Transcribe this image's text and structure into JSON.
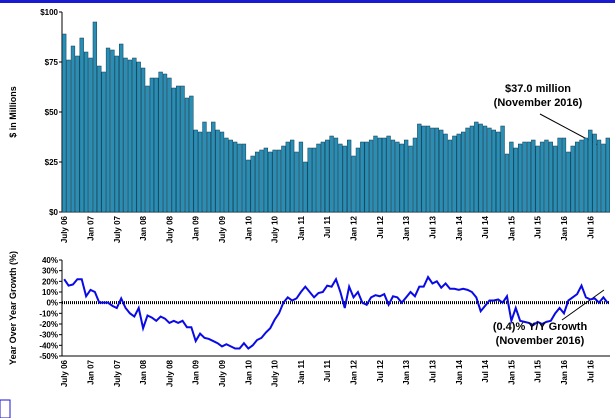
{
  "chart_data": [
    {
      "type": "bar",
      "y_label": "$ in Millions",
      "color": "#2a8db3",
      "annotation": [
        "$37.0 million",
        "(November 2016)"
      ],
      "categories": [
        "July 06",
        null,
        null,
        null,
        null,
        null,
        "Jan 07",
        null,
        null,
        null,
        null,
        null,
        "July 07",
        null,
        null,
        null,
        null,
        null,
        "Jan 08",
        null,
        null,
        null,
        null,
        null,
        "July 08",
        null,
        null,
        null,
        null,
        null,
        "Jan 09",
        null,
        null,
        null,
        null,
        null,
        "July 09",
        null,
        null,
        null,
        null,
        null,
        "Jan 10",
        null,
        null,
        null,
        null,
        null,
        "July 10",
        null,
        null,
        null,
        null,
        null,
        "Jan 11",
        null,
        null,
        null,
        null,
        null,
        "Jul 11",
        null,
        null,
        null,
        null,
        null,
        "Jan 12",
        null,
        null,
        null,
        null,
        null,
        "Jul 12",
        null,
        null,
        null,
        null,
        null,
        "Jan 13",
        null,
        null,
        null,
        null,
        null,
        "Jul 13",
        null,
        null,
        null,
        null,
        null,
        "Jan 14",
        null,
        null,
        null,
        null,
        null,
        "Jul 14",
        null,
        null,
        null,
        null,
        null,
        "Jan 15",
        null,
        null,
        null,
        null,
        null,
        "Jul 15",
        null,
        null,
        null,
        null,
        null,
        "Jan 16",
        null,
        null,
        null,
        null,
        null,
        "Jul 16",
        null,
        null,
        null,
        null
      ],
      "values": [
        89,
        76,
        83,
        78,
        87,
        80,
        77,
        95,
        73,
        70,
        82,
        81,
        78,
        84,
        77,
        76,
        77,
        75,
        72,
        63,
        67,
        67,
        70,
        69,
        67,
        62,
        63,
        63,
        57,
        58,
        41,
        40,
        45,
        40,
        45,
        41,
        40,
        37,
        36,
        35,
        34,
        34,
        26,
        28,
        30,
        31,
        32,
        30,
        31,
        31,
        33,
        35,
        36,
        30,
        35,
        25,
        32,
        32,
        34,
        35,
        36,
        38,
        37,
        34,
        33,
        36,
        28,
        32,
        35,
        35,
        36,
        38,
        37,
        37,
        38,
        36,
        35,
        34,
        36,
        33,
        37,
        44,
        43,
        43,
        42,
        42,
        41,
        39,
        36,
        38,
        39,
        40,
        42,
        43,
        45,
        44,
        43,
        42,
        41,
        40,
        43,
        29,
        35,
        32,
        34,
        35,
        35,
        36,
        33,
        35,
        36,
        35,
        33,
        37,
        37,
        30,
        33,
        35,
        36,
        37,
        41,
        39,
        36,
        34,
        37
      ],
      "ylim": [
        0,
        100
      ],
      "yticks": [
        {
          "value": 0,
          "label": "$0"
        },
        {
          "value": 25,
          "label": "$25"
        },
        {
          "value": 50,
          "label": "$50"
        },
        {
          "value": 75,
          "label": "$75"
        },
        {
          "value": 100,
          "label": "$100"
        }
      ]
    },
    {
      "type": "line",
      "y_label": "Year Over Year Growth (%)",
      "color": "#0a0ae6",
      "zero_line": true,
      "annotation": [
        "(0.4)% Y/Y Growth",
        "(November 2016)"
      ],
      "categories": [
        "July 06",
        null,
        null,
        null,
        null,
        null,
        "Jan 07",
        null,
        null,
        null,
        null,
        null,
        "July 07",
        null,
        null,
        null,
        null,
        null,
        "Jan 08",
        null,
        null,
        null,
        null,
        null,
        "July 08",
        null,
        null,
        null,
        null,
        null,
        "Jan 09",
        null,
        null,
        null,
        null,
        null,
        "July 09",
        null,
        null,
        null,
        null,
        null,
        "Jan 10",
        null,
        null,
        null,
        null,
        null,
        "July 10",
        null,
        null,
        null,
        null,
        null,
        "Jan 11",
        null,
        null,
        null,
        null,
        null,
        "Jul 11",
        null,
        null,
        null,
        null,
        null,
        "Jan 12",
        null,
        null,
        null,
        null,
        null,
        "Jul 12",
        null,
        null,
        null,
        null,
        null,
        "Jan 13",
        null,
        null,
        null,
        null,
        null,
        "Jul 13",
        null,
        null,
        null,
        null,
        null,
        "Jan 14",
        null,
        null,
        null,
        null,
        null,
        "Jul 14",
        null,
        null,
        null,
        null,
        null,
        "Jan 15",
        null,
        null,
        null,
        null,
        null,
        "Jul 15",
        null,
        null,
        null,
        null,
        null,
        "Jan 16",
        null,
        null,
        null,
        null,
        null,
        "Jul 16",
        null,
        null,
        null,
        null
      ],
      "values": [
        22,
        16,
        17,
        22,
        22,
        6,
        12,
        10,
        0,
        0,
        0,
        -3,
        -5,
        4,
        -5,
        -10,
        -13,
        -5,
        -24,
        -12,
        -14,
        -17,
        -13,
        -15,
        -19,
        -17,
        -19,
        -17,
        -23,
        -23,
        -36,
        -29,
        -33,
        -34,
        -36,
        -38,
        -41,
        -39,
        -41,
        -43,
        -43,
        -38,
        -43,
        -40,
        -35,
        -33,
        -28,
        -24,
        -16,
        -10,
        0,
        5,
        2,
        4,
        10,
        15,
        10,
        5,
        9,
        10,
        16,
        15,
        22,
        10,
        -5,
        15,
        5,
        10,
        0,
        -2,
        5,
        7,
        6,
        8,
        -2,
        6,
        5,
        0,
        5,
        10,
        6,
        15,
        15,
        24,
        18,
        20,
        14,
        18,
        13,
        13,
        12,
        13,
        12,
        10,
        5,
        -8,
        -3,
        2,
        2,
        3,
        0,
        6,
        -17,
        -5,
        -17,
        -18,
        -19,
        -21,
        -18,
        -20,
        -18,
        -17,
        -10,
        -5,
        -10,
        2,
        5,
        8,
        16,
        5,
        3,
        4,
        0,
        5,
        -0.4
      ],
      "ylim": [
        -50,
        40
      ],
      "yticks": [
        {
          "value": -50,
          "label": "-50%"
        },
        {
          "value": -40,
          "label": "-40%"
        },
        {
          "value": -30,
          "label": "-30%"
        },
        {
          "value": -20,
          "label": "-20%"
        },
        {
          "value": -10,
          "label": "-10%"
        },
        {
          "value": 0,
          "label": "0%"
        },
        {
          "value": 10,
          "label": "10%"
        },
        {
          "value": 20,
          "label": "20%"
        },
        {
          "value": 30,
          "label": "30%"
        },
        {
          "value": 40,
          "label": "40%"
        }
      ]
    }
  ]
}
